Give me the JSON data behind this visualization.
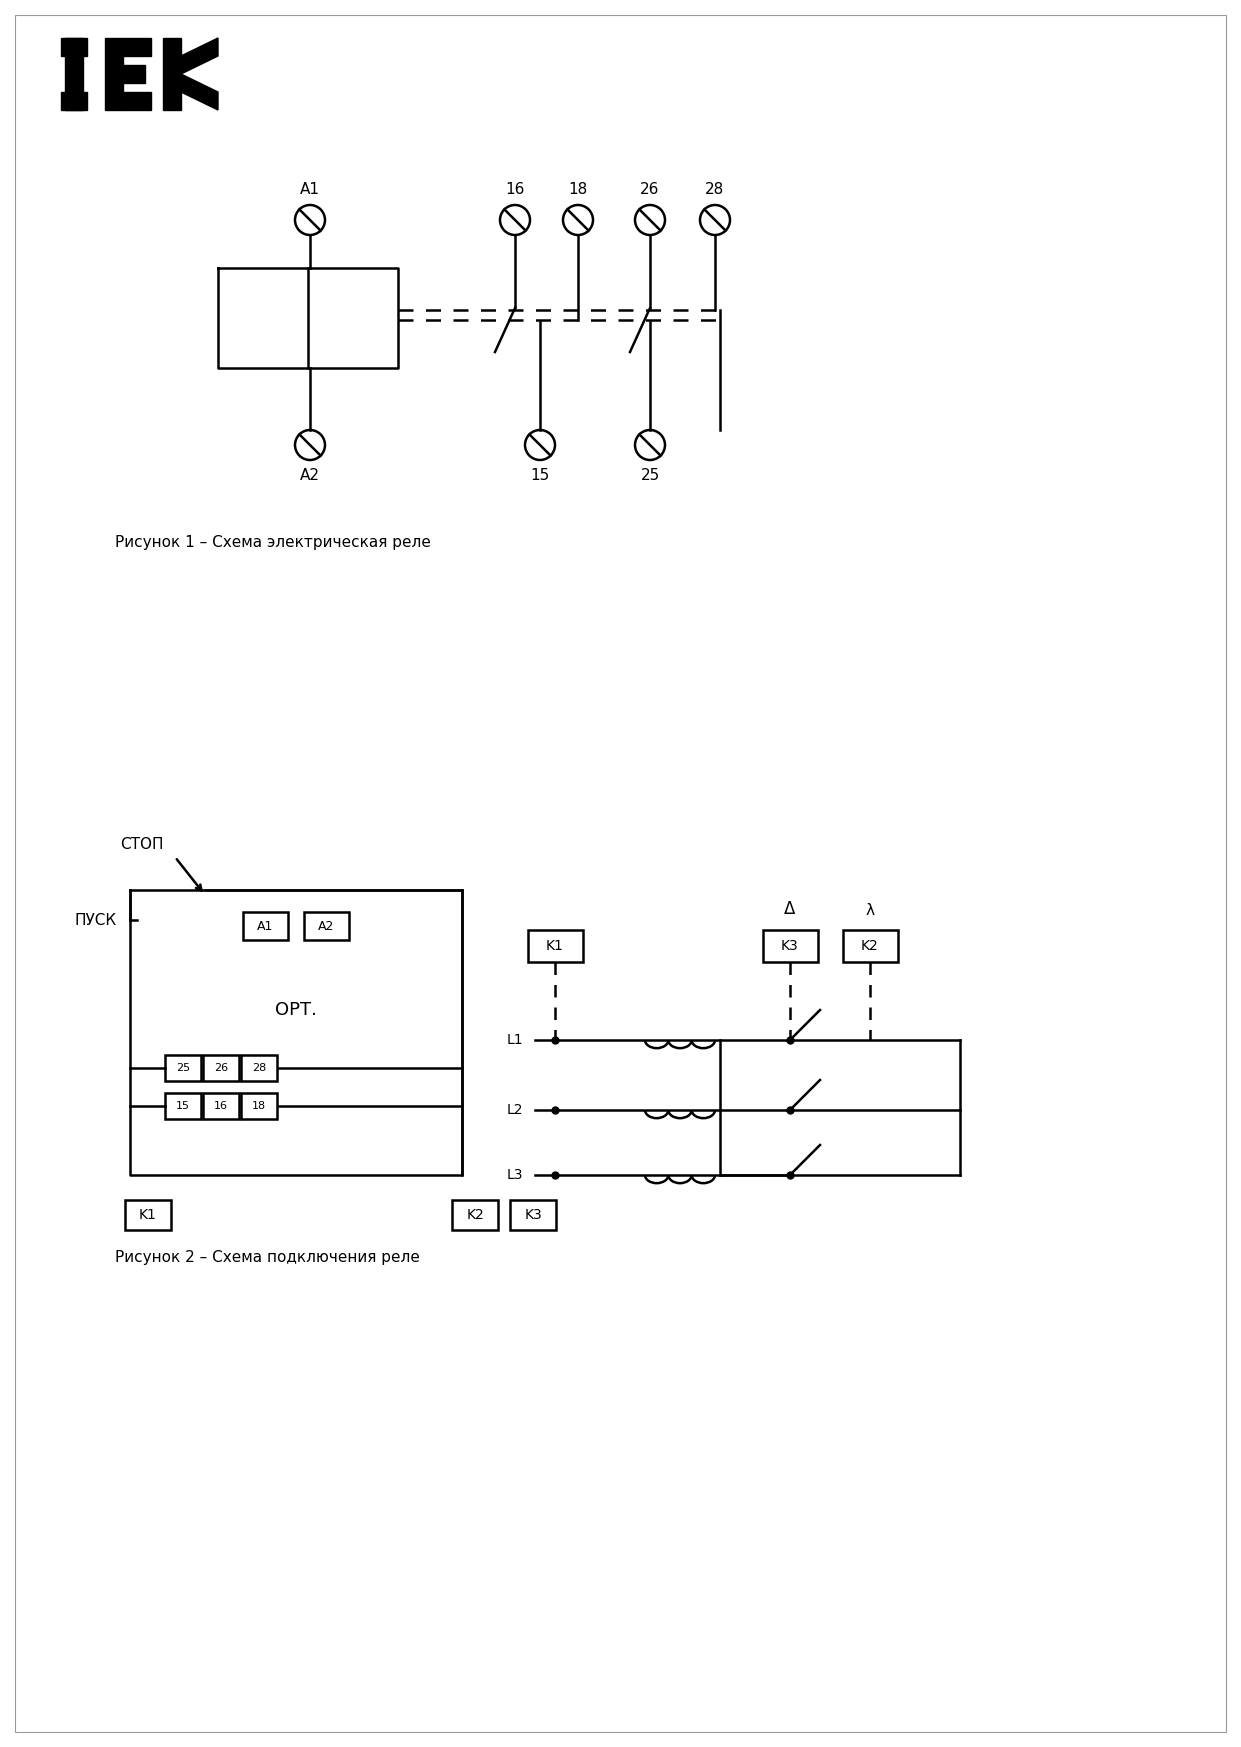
{
  "bg_color": "#ffffff",
  "lc": "#000000",
  "fig_width": 12.41,
  "fig_height": 17.47,
  "dpi": 100,
  "caption1": "Рисунок 1 – Схема электрическая реле",
  "caption2": "Рисунок 2 – Схема подключения реле",
  "ort_text": "ОРТ.",
  "stop_text": "СТОП",
  "pusk_text": "ПУСК",
  "delta_symbol": "Δ",
  "star_symbol": "λ",
  "L_labels": [
    "L1",
    "L2",
    "L3"
  ],
  "top_terms": [
    "A1",
    "16",
    "18",
    "26",
    "28"
  ],
  "bot_terms": [
    "A2",
    "15",
    "25"
  ],
  "K_left_labels": [
    "K1",
    "K2",
    "K3"
  ],
  "K_right_labels": [
    "K1",
    "K3",
    "K2"
  ],
  "inner_top": [
    "A1",
    "A2"
  ],
  "inner_row1": [
    "25",
    "26",
    "28"
  ],
  "inner_row2": [
    "15",
    "16",
    "18"
  ]
}
